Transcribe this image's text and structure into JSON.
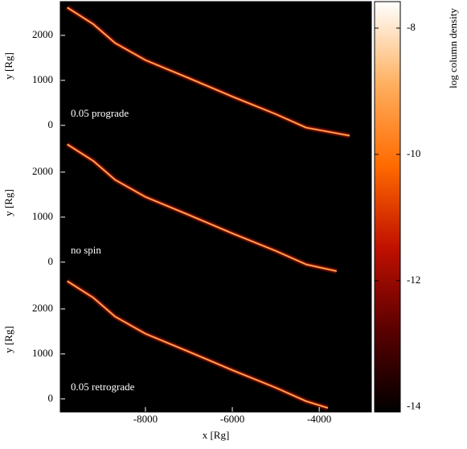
{
  "chart_data": [
    {
      "type": "stream",
      "label": "0.05 prograde",
      "ylabel": "y [Rg]",
      "color": "#ffb060",
      "x": [
        -9800,
        -9200,
        -8700,
        -8000,
        -7000,
        -6000,
        -5000,
        -4300,
        -3300
      ],
      "y": [
        2620,
        2250,
        1830,
        1450,
        1050,
        640,
        250,
        -50,
        -230
      ],
      "xlim": [
        -9960,
        -2800
      ],
      "ylim": [
        -290,
        2750
      ],
      "yticks": [
        0,
        1000,
        2000
      ]
    },
    {
      "type": "stream",
      "label": "no spin",
      "ylabel": "y [Rg]",
      "color": "#ffb060",
      "x": [
        -9800,
        -9200,
        -8700,
        -8000,
        -7000,
        -6000,
        -5000,
        -4300,
        -3600
      ],
      "y": [
        2620,
        2250,
        1830,
        1450,
        1050,
        640,
        250,
        -50,
        -200
      ],
      "xlim": [
        -9960,
        -2800
      ],
      "ylim": [
        -290,
        2750
      ],
      "yticks": [
        0,
        1000,
        2000
      ]
    },
    {
      "type": "stream",
      "label": "0.05 retrograde",
      "ylabel": "y [Rg]",
      "color": "#ffb060",
      "x": [
        -9800,
        -9200,
        -8700,
        -8000,
        -7000,
        -6000,
        -5000,
        -4300,
        -3800
      ],
      "y": [
        2620,
        2250,
        1830,
        1450,
        1050,
        640,
        250,
        -50,
        -200
      ],
      "xlim": [
        -9960,
        -2800
      ],
      "ylim": [
        -290,
        2750
      ],
      "yticks": [
        0,
        1000,
        2000
      ],
      "xlabel": "x [Rg]",
      "xticks": [
        -8000,
        -6000,
        -4000
      ]
    },
    {
      "type": "colorbar",
      "label": "log column density",
      "zlim": [
        -14.08,
        -7.58
      ],
      "zticks": [
        -8,
        -10,
        -12,
        -14
      ],
      "colors": [
        "#000000",
        "#5a0000",
        "#c01000",
        "#ff6a00",
        "#ffb060",
        "#ffffff"
      ]
    }
  ]
}
